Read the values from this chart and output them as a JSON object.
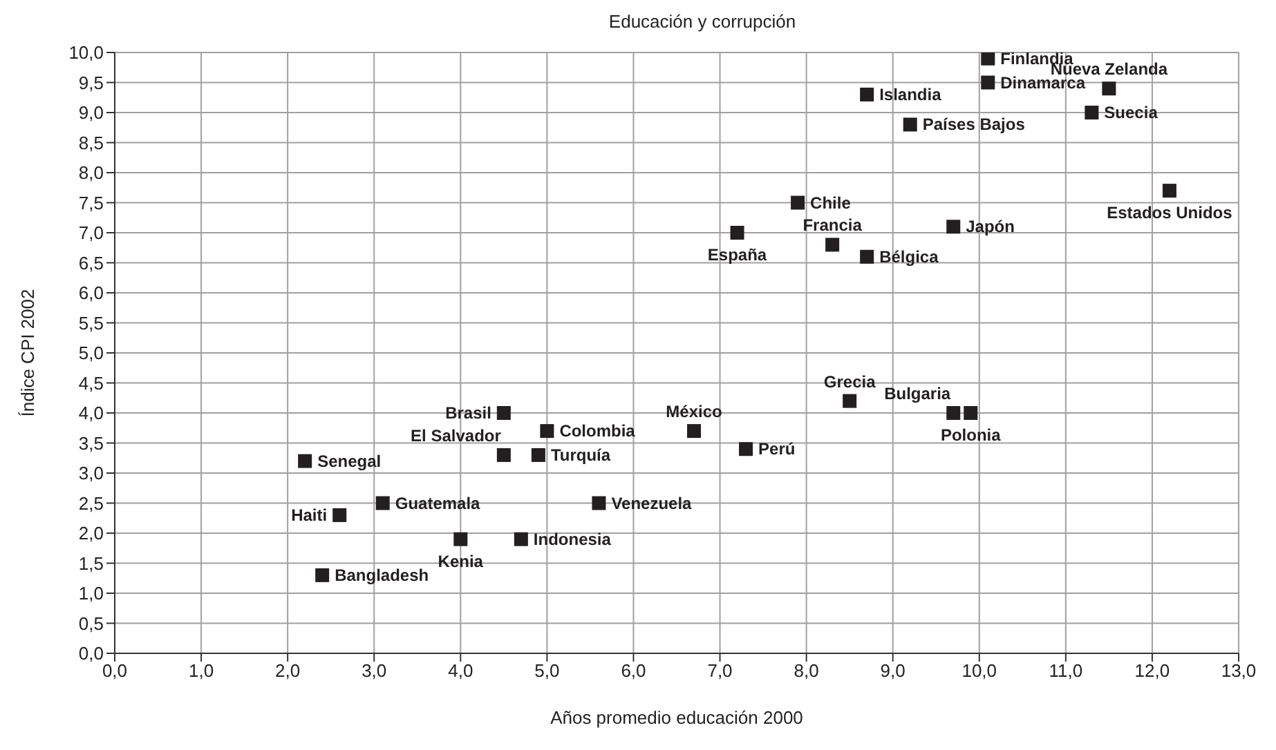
{
  "chart_data": {
    "type": "scatter",
    "title": "Educación y corrupción",
    "xlabel": "Años promedio educación 2000",
    "ylabel": "Índice CPI 2002",
    "xlim": [
      0,
      13
    ],
    "xticks": [
      {
        "value": 0,
        "label": "0,0"
      },
      {
        "value": 1,
        "label": "1,0"
      },
      {
        "value": 2,
        "label": "2,0"
      },
      {
        "value": 3,
        "label": "3,0"
      },
      {
        "value": 4,
        "label": "4,0"
      },
      {
        "value": 5,
        "label": "5,0"
      },
      {
        "value": 6,
        "label": "6,0"
      },
      {
        "value": 7,
        "label": "7,0"
      },
      {
        "value": 8,
        "label": "8,0"
      },
      {
        "value": 9,
        "label": "9,0"
      },
      {
        "value": 10,
        "label": "10,0"
      },
      {
        "value": 11,
        "label": "11,0"
      },
      {
        "value": 12,
        "label": "12,0"
      },
      {
        "value": 13,
        "label": "13,0"
      }
    ],
    "ylim": [
      0,
      10
    ],
    "yticks": [
      {
        "value": 0,
        "label": "0,0"
      },
      {
        "value": 0.5,
        "label": "0,5"
      },
      {
        "value": 1,
        "label": "1,0"
      },
      {
        "value": 1.5,
        "label": "1,5"
      },
      {
        "value": 2,
        "label": "2,0"
      },
      {
        "value": 2.5,
        "label": "2,5"
      },
      {
        "value": 3,
        "label": "3,0"
      },
      {
        "value": 3.5,
        "label": "3,5"
      },
      {
        "value": 4,
        "label": "4,0"
      },
      {
        "value": 4.5,
        "label": "4,5"
      },
      {
        "value": 5,
        "label": "5,0"
      },
      {
        "value": 5.5,
        "label": "5,5"
      },
      {
        "value": 6,
        "label": "6,0"
      },
      {
        "value": 6.5,
        "label": "6,5"
      },
      {
        "value": 7,
        "label": "7,0"
      },
      {
        "value": 7.5,
        "label": "7,5"
      },
      {
        "value": 8,
        "label": "8,0"
      },
      {
        "value": 8.5,
        "label": "8,5"
      },
      {
        "value": 9,
        "label": "9,0"
      },
      {
        "value": 9.5,
        "label": "9,5"
      },
      {
        "value": 10,
        "label": "10,0"
      }
    ],
    "grid": true,
    "marker": "square",
    "series": [
      {
        "color": "#231f20",
        "x": [
          4.5,
          5.0,
          6.7,
          4.5,
          4.9,
          2.2,
          3.1,
          5.6,
          2.6,
          4.0,
          4.7,
          2.4,
          10.1,
          10.1,
          11.5,
          11.3,
          8.7,
          9.2,
          12.2,
          7.9,
          7.2,
          8.3,
          8.7,
          9.7,
          8.5,
          9.7,
          9.9,
          7.3
        ],
        "values": [
          4.0,
          3.7,
          3.7,
          3.3,
          3.3,
          3.2,
          2.5,
          2.5,
          2.3,
          1.9,
          1.9,
          1.3,
          9.9,
          9.5,
          9.4,
          9.0,
          9.3,
          8.8,
          7.7,
          7.5,
          7.0,
          6.8,
          6.6,
          7.1,
          4.2,
          4.0,
          4.0,
          3.4
        ]
      }
    ],
    "annotations": [
      {
        "text": "Brasil",
        "x": 4.5,
        "y": 4.0
      },
      {
        "text": "Colombia",
        "x": 5.0,
        "y": 3.7
      },
      {
        "text": "México",
        "x": 6.7,
        "y": 3.7
      },
      {
        "text": "El Salvador",
        "x": 4.5,
        "y": 3.3
      },
      {
        "text": "Turquía",
        "x": 4.9,
        "y": 3.3
      },
      {
        "text": "Senegal",
        "x": 2.2,
        "y": 3.2
      },
      {
        "text": "Guatemala",
        "x": 3.1,
        "y": 2.5
      },
      {
        "text": "Venezuela",
        "x": 5.6,
        "y": 2.5
      },
      {
        "text": "Haiti",
        "x": 2.6,
        "y": 2.3
      },
      {
        "text": "Kenia",
        "x": 4.0,
        "y": 1.9
      },
      {
        "text": "Indonesia",
        "x": 4.7,
        "y": 1.9
      },
      {
        "text": "Bangladesh",
        "x": 2.4,
        "y": 1.3
      },
      {
        "text": "Finlandia",
        "x": 10.1,
        "y": 9.9
      },
      {
        "text": "Dinamarca",
        "x": 10.1,
        "y": 9.5
      },
      {
        "text": "Nueva Zelanda",
        "x": 11.5,
        "y": 9.4
      },
      {
        "text": "Suecia",
        "x": 11.3,
        "y": 9.0
      },
      {
        "text": "Islandia",
        "x": 8.7,
        "y": 9.3
      },
      {
        "text": "Países Bajos",
        "x": 9.2,
        "y": 8.8
      },
      {
        "text": "Estados Unidos",
        "x": 12.2,
        "y": 7.7
      },
      {
        "text": "Chile",
        "x": 7.9,
        "y": 7.5
      },
      {
        "text": "España",
        "x": 7.2,
        "y": 7.0
      },
      {
        "text": "Francia",
        "x": 8.3,
        "y": 6.8
      },
      {
        "text": "Bélgica",
        "x": 8.7,
        "y": 6.6
      },
      {
        "text": "Japón",
        "x": 9.7,
        "y": 7.1
      },
      {
        "text": "Grecia",
        "x": 8.5,
        "y": 4.2
      },
      {
        "text": "Bulgaria",
        "x": 9.7,
        "y": 4.0
      },
      {
        "text": "Polonia",
        "x": 9.9,
        "y": 4.0
      },
      {
        "text": "Perú",
        "x": 7.3,
        "y": 3.4
      }
    ]
  }
}
